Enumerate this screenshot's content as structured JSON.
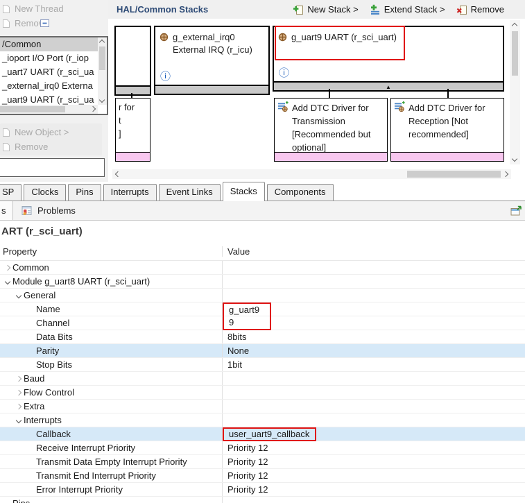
{
  "threads_panel": {
    "new_thread_btn": "New Thread",
    "remove_btn": "Remove",
    "items": [
      {
        "label": "/Common",
        "selected": true
      },
      {
        "label": "_ioport I/O Port (r_iop",
        "selected": false
      },
      {
        "label": "_uart7 UART (r_sci_ua",
        "selected": false
      },
      {
        "label": "_external_irq0 Externa",
        "selected": false
      },
      {
        "label": "_uart9 UART (r_sci_ua",
        "selected": false
      }
    ],
    "new_object_btn": "New Object >",
    "remove_object_btn": "Remove"
  },
  "stacks_panel": {
    "title": "HAL/Common Stacks",
    "new_stack_btn": "New Stack >",
    "extend_stack_btn": "Extend Stack >",
    "remove_btn": "Remove",
    "irq_box": {
      "line1": "g_external_irq0",
      "line2": "External IRQ (r_icu)"
    },
    "uart_box": {
      "title": "g_uart9 UART (r_sci_uart)",
      "highlighted": true
    },
    "partial_box_lines": [
      "r for",
      "t",
      "]"
    ],
    "dtc_tx_box": {
      "lines": [
        "Add DTC Driver for",
        "Transmission",
        "[Recommended but",
        "optional]"
      ]
    },
    "dtc_rx_box": {
      "lines": [
        "Add DTC Driver for",
        "Reception [Not",
        "recommended]"
      ]
    }
  },
  "main_tabs": {
    "items": [
      "SP",
      "Clocks",
      "Pins",
      "Interrupts",
      "Event Links",
      "Stacks",
      "Components"
    ],
    "selected": "Stacks"
  },
  "view_tabs": {
    "left_stub": "s",
    "problems_label": "Problems"
  },
  "properties": {
    "title": "ART (r_sci_uart)",
    "columns": {
      "property": "Property",
      "value": "Value"
    },
    "rows": [
      {
        "indent": 1,
        "expand": "collapsed",
        "label": "Common",
        "value": ""
      },
      {
        "indent": 1,
        "expand": "expanded",
        "label": "Module g_uart8 UART (r_sci_uart)",
        "value": ""
      },
      {
        "indent": 2,
        "expand": "expanded",
        "label": "General",
        "value": ""
      },
      {
        "indent": 3,
        "label": "Name",
        "value": "g_uart9",
        "box": "top"
      },
      {
        "indent": 3,
        "label": "Channel",
        "value": "9",
        "box": "bottom"
      },
      {
        "indent": 3,
        "label": "Data Bits",
        "value": "8bits"
      },
      {
        "indent": 3,
        "label": "Parity",
        "value": "None",
        "selected": true
      },
      {
        "indent": 3,
        "label": "Stop Bits",
        "value": "1bit"
      },
      {
        "indent": 2,
        "expand": "collapsed",
        "label": "Baud",
        "value": ""
      },
      {
        "indent": 2,
        "expand": "collapsed",
        "label": "Flow Control",
        "value": ""
      },
      {
        "indent": 2,
        "expand": "collapsed",
        "label": "Extra",
        "value": ""
      },
      {
        "indent": 2,
        "expand": "expanded",
        "label": "Interrupts",
        "value": ""
      },
      {
        "indent": 3,
        "label": "Callback",
        "value": "user_uart9_callback",
        "selected": true,
        "box": "full"
      },
      {
        "indent": 3,
        "label": "Receive Interrupt Priority",
        "value": "Priority 12"
      },
      {
        "indent": 3,
        "label": "Transmit Data Empty Interrupt Priority",
        "value": "Priority 12"
      },
      {
        "indent": 3,
        "label": "Transmit End Interrupt Priority",
        "value": "Priority 12"
      },
      {
        "indent": 3,
        "label": "Error Interrupt Priority",
        "value": "Priority 12"
      },
      {
        "indent": 1,
        "expand": "expanded",
        "label": "Pins",
        "value": ""
      }
    ]
  },
  "icons": {
    "info_glyph": "ⓘ",
    "collapse_triangle_glyph": "▲"
  },
  "colors": {
    "highlight_red": "#df1414",
    "selected_row_blue": "#d6e9f8",
    "pink_bar": "#f8c7ef",
    "gray_bar": "#c9c9c9",
    "header_title_blue": "#2e4b76"
  }
}
